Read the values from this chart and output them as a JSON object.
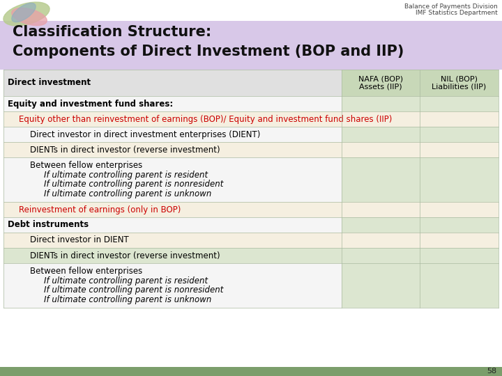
{
  "title_line1": "Classification Structure:",
  "title_line2": "Components of Direct Investment (BOP and IIP)",
  "title_bg": "#d8c8e8",
  "watermark_line1": "Balance of Payments Division",
  "watermark_line2": "IMF Statistics Department",
  "col1_header": "Direct investment",
  "col2_header": "NAFA (BOP)\nAssets (IIP)",
  "col3_header": "NIL (BOP)\nLiabilities (IIP)",
  "footer_color": "#7b9e6b",
  "page_number": "58",
  "header_col1_bg": "#e0e0e0",
  "header_col2_bg": "#c8d8b8",
  "header_col3_bg": "#c8d8b8",
  "rows": [
    {
      "text": "Equity and investment fund shares:",
      "lines": [
        "Equity and investment fund shares:"
      ],
      "indent": 0,
      "bold": true,
      "color": "#000000",
      "bg": "#f5f5f5",
      "col2_bg": "#dce6d0",
      "col3_bg": "#dce6d0"
    },
    {
      "text": "Equity other than reinvestment of earnings (BOP)/ Equity and investment fund shares (IIP)",
      "lines": [
        "Equity other than reinvestment of earnings (BOP)/ Equity and investment fund shares (IIP)"
      ],
      "indent": 1,
      "bold": false,
      "color": "#cc0000",
      "bg": "#f5efe0",
      "col2_bg": "#f5efe0",
      "col3_bg": "#f5efe0"
    },
    {
      "text": "Direct investor in direct investment enterprises (DIENT)",
      "lines": [
        "Direct investor in direct investment enterprises (DIENT)"
      ],
      "indent": 2,
      "bold": false,
      "color": "#000000",
      "bg": "#f5f5f5",
      "col2_bg": "#dce6d0",
      "col3_bg": "#dce6d0"
    },
    {
      "text": "DIENTs in direct investor (reverse investment)",
      "lines": [
        "DIENTs in direct investor (reverse investment)"
      ],
      "indent": 2,
      "bold": false,
      "color": "#000000",
      "bg": "#f5efe0",
      "col2_bg": "#f5efe0",
      "col3_bg": "#f5efe0"
    },
    {
      "text": "Between fellow enterprises",
      "lines": [
        "Between fellow enterprises",
        "If ultimate controlling parent is resident",
        "If ultimate controlling parent is nonresident",
        "If ultimate controlling parent is unknown"
      ],
      "first_normal": true,
      "rest_italic": true,
      "indent": 2,
      "sub_indent": 3,
      "bold": false,
      "color": "#000000",
      "bg": "#f5f5f5",
      "col2_bg": "#dce6d0",
      "col3_bg": "#dce6d0"
    },
    {
      "text": "Reinvestment of earnings (only in BOP)",
      "lines": [
        "Reinvestment of earnings (only in BOP)"
      ],
      "indent": 1,
      "bold": false,
      "color": "#cc0000",
      "bg": "#f5efe0",
      "col2_bg": "#f5efe0",
      "col3_bg": "#f5efe0"
    },
    {
      "text": "Debt instruments",
      "lines": [
        "Debt instruments"
      ],
      "indent": 0,
      "bold": true,
      "color": "#000000",
      "bg": "#f5f5f5",
      "col2_bg": "#dce6d0",
      "col3_bg": "#dce6d0"
    },
    {
      "text": "Direct investor in DIENT",
      "lines": [
        "Direct investor in DIENT"
      ],
      "indent": 2,
      "bold": false,
      "color": "#000000",
      "bg": "#f5efe0",
      "col2_bg": "#f5efe0",
      "col3_bg": "#f5efe0"
    },
    {
      "text": "DIENTs in direct investor (reverse investment)",
      "lines": [
        "DIENTs in direct investor (reverse investment)"
      ],
      "indent": 2,
      "bold": false,
      "color": "#000000",
      "bg": "#dce6d0",
      "col2_bg": "#dce6d0",
      "col3_bg": "#dce6d0"
    },
    {
      "text": "Between fellow enterprises",
      "lines": [
        "Between fellow enterprises",
        "If ultimate controlling parent is resident",
        "If ultimate controlling parent is nonresident",
        "If ultimate controlling parent is unknown"
      ],
      "first_normal": true,
      "rest_italic": true,
      "indent": 2,
      "sub_indent": 3,
      "bold": false,
      "color": "#000000",
      "bg": "#f5f5f5",
      "col2_bg": "#dce6d0",
      "col3_bg": "#dce6d0"
    }
  ]
}
